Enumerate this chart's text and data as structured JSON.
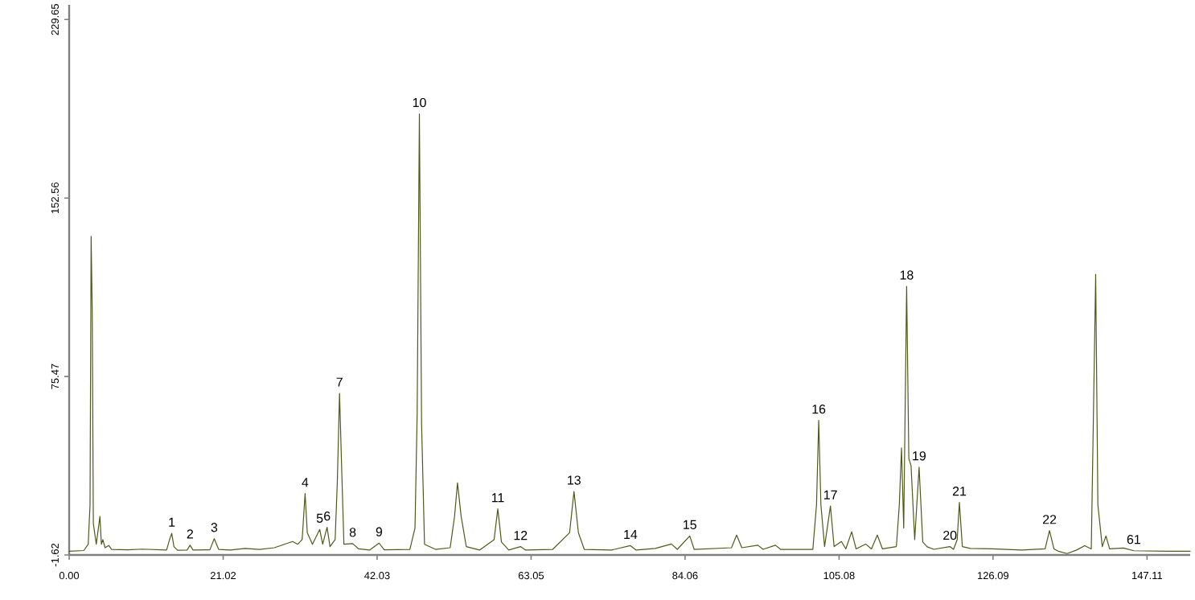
{
  "chart_data": {
    "type": "line",
    "color": "#4f5a1a",
    "xlim": [
      0,
      153
    ],
    "ylim": [
      -1.62,
      236
    ],
    "xticks": [
      {
        "value": 0,
        "label": "0.00"
      },
      21.02,
      42.03,
      63.05,
      84.06,
      105.08,
      126.09,
      147.11
    ],
    "yticks": [
      -1.62,
      75.47,
      152.56,
      229.65
    ],
    "grid": false,
    "marker": "none",
    "line_style": "solid",
    "x": [
      0,
      2.0,
      2.6,
      2.85,
      3.0,
      3.15,
      3.3,
      3.7,
      4.2,
      4.4,
      4.6,
      4.9,
      5.4,
      5.8,
      8,
      10,
      13.3,
      13.7,
      14.0,
      14.3,
      14.8,
      16.1,
      16.5,
      16.9,
      19.2,
      19.8,
      20.4,
      22,
      24,
      26,
      28,
      30.5,
      31.2,
      31.8,
      32.2,
      32.5,
      33.2,
      34.2,
      34.6,
      35.2,
      35.6,
      36.3,
      36.6,
      36.9,
      37.2,
      37.5,
      38.7,
      39.5,
      41,
      42.3,
      43,
      46.5,
      47.2,
      47.5,
      47.8,
      48.1,
      48.5,
      50,
      52,
      52.6,
      53.0,
      53.5,
      54.2,
      56,
      58,
      58.5,
      59.0,
      60,
      61.6,
      62.3,
      66,
      68.3,
      68.9,
      69.5,
      70.3,
      74,
      76.6,
      77.4,
      80,
      82.2,
      83,
      84.7,
      85.3,
      90.4,
      91.1,
      91.8,
      94.0,
      94.7,
      96.4,
      97.1,
      101.5,
      102.0,
      102.3,
      102.6,
      103.1,
      103.9,
      104.4,
      105.4,
      106,
      106.8,
      107.4,
      108.7,
      109.5,
      110.3,
      111,
      112.9,
      113.3,
      113.6,
      113.9,
      114.3,
      114.6,
      114.9,
      115.4,
      116.0,
      116.5,
      117.1,
      118,
      120.2,
      120.7,
      121.2,
      121.5,
      121.9,
      123,
      126,
      130,
      133.2,
      133.8,
      134.4,
      135,
      136.2,
      137.5,
      138.6,
      139.5,
      139.8,
      140.1,
      140.4,
      141,
      141.5,
      142,
      143.9,
      145.3,
      150,
      153
    ],
    "values": [
      0,
      0.3,
      3,
      20,
      136,
      103,
      12,
      3,
      15,
      3,
      5,
      1.5,
      2.5,
      0.8,
      0.6,
      0.9,
      0.5,
      5,
      7.7,
      2,
      0.4,
      0.5,
      2.6,
      0.5,
      0.6,
      5.4,
      0.8,
      0.5,
      1.2,
      0.8,
      1.5,
      4.2,
      3,
      5,
      24.9,
      8,
      3,
      9.4,
      3,
      10.3,
      2,
      5,
      30,
      68.2,
      35,
      3,
      3.3,
      1,
      0.5,
      3.5,
      0.6,
      0.8,
      10,
      60,
      188.9,
      55,
      3,
      0.8,
      1.5,
      15,
      29.5,
      15,
      2,
      0.5,
      5,
      18.3,
      4,
      0.5,
      2.0,
      0.5,
      0.8,
      8,
      25.8,
      8,
      0.8,
      0.5,
      2.4,
      0.5,
      1.2,
      3.1,
      0.8,
      6.6,
      0.8,
      1.5,
      7.0,
      1.5,
      2.6,
      0.8,
      2.6,
      0.8,
      0.8,
      20,
      56.5,
      20,
      2,
      19.5,
      2,
      4.2,
      1,
      8.4,
      1,
      3.1,
      1,
      7.0,
      1,
      2,
      20,
      44.6,
      10,
      114.4,
      40,
      37,
      5,
      36.3,
      4,
      1.9,
      0.8,
      2.0,
      0.8,
      5,
      21.1,
      2,
      1.2,
      1.0,
      0.5,
      1,
      8.9,
      1,
      0,
      -1.0,
      0.5,
      2.4,
      1,
      60,
      119.6,
      20,
      2,
      6.6,
      1,
      1.4,
      0.2,
      0,
      0
    ],
    "annotations": [
      {
        "text": "1",
        "x": 14.0,
        "y": 7.7
      },
      {
        "text": "2",
        "x": 16.5,
        "y": 2.6
      },
      {
        "text": "3",
        "x": 19.8,
        "y": 5.4
      },
      {
        "text": "4",
        "x": 32.2,
        "y": 24.9
      },
      {
        "text": "5",
        "x": 34.2,
        "y": 9.4
      },
      {
        "text": "6",
        "x": 35.2,
        "y": 10.3
      },
      {
        "text": "7",
        "x": 36.9,
        "y": 68.2
      },
      {
        "text": "8",
        "x": 38.7,
        "y": 3.3
      },
      {
        "text": "9",
        "x": 42.3,
        "y": 3.5
      },
      {
        "text": "10",
        "x": 47.8,
        "y": 188.9
      },
      {
        "text": "11",
        "x": 58.5,
        "y": 18.3
      },
      {
        "text": "12",
        "x": 61.6,
        "y": 2.0
      },
      {
        "text": "13",
        "x": 68.9,
        "y": 25.8
      },
      {
        "text": "14",
        "x": 76.6,
        "y": 2.4
      },
      {
        "text": "15",
        "x": 84.7,
        "y": 6.6
      },
      {
        "text": "16",
        "x": 102.3,
        "y": 56.5
      },
      {
        "text": "17",
        "x": 103.9,
        "y": 19.5
      },
      {
        "text": "18",
        "x": 114.3,
        "y": 114.4
      },
      {
        "text": "19",
        "x": 116.0,
        "y": 36.3
      },
      {
        "text": "20",
        "x": 120.2,
        "y": 2.0
      },
      {
        "text": "21",
        "x": 121.5,
        "y": 21.1
      },
      {
        "text": "22",
        "x": 133.8,
        "y": 8.9
      },
      {
        "text": "61",
        "x": 145.3,
        "y": 0.2
      }
    ]
  }
}
